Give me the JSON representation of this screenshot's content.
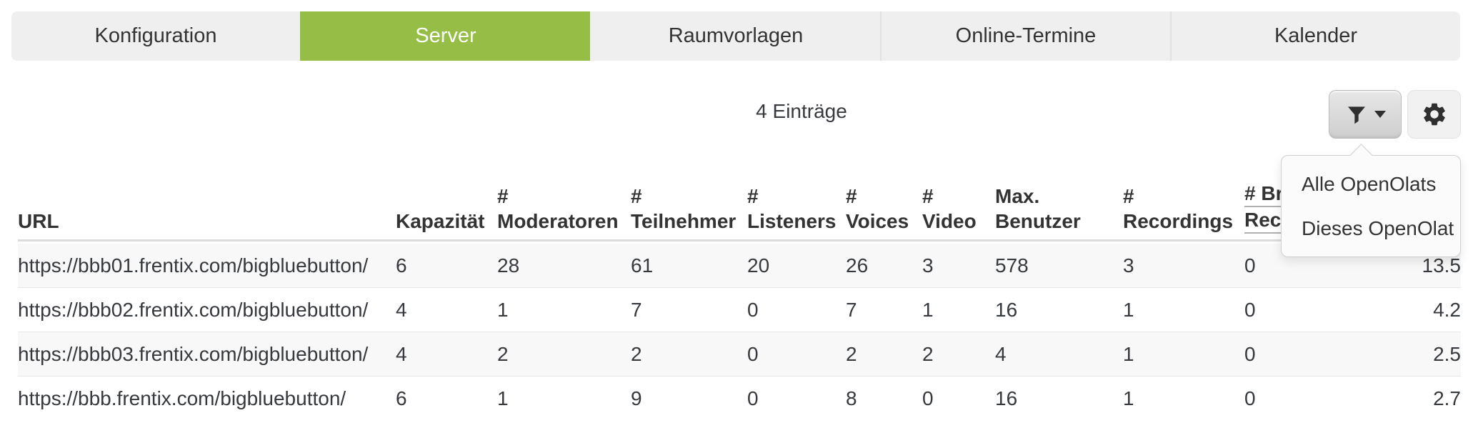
{
  "colors": {
    "active_tab_green": "#96be46",
    "active_tab_text": "#ffffff"
  },
  "tabs": [
    {
      "id": "konfiguration",
      "label": "Konfiguration",
      "active": false
    },
    {
      "id": "server",
      "label": "Server",
      "active": true
    },
    {
      "id": "raumvorlagen",
      "label": "Raumvorlagen",
      "active": false
    },
    {
      "id": "online-termine",
      "label": "Online-Termine",
      "active": false
    },
    {
      "id": "kalender",
      "label": "Kalender",
      "active": false
    }
  ],
  "toolbar": {
    "entries_label": "4 Einträge",
    "filter_button_icon": "funnel-icon",
    "settings_button_icon": "gear-icon",
    "filter_menu": {
      "items": [
        {
          "label": "Alle OpenOlats"
        },
        {
          "label": "Dieses OpenOlat"
        }
      ]
    }
  },
  "table": {
    "headers": [
      {
        "line1": "",
        "line2": "URL",
        "underlined": false
      },
      {
        "line1": "",
        "line2": "Kapazität",
        "underlined": false
      },
      {
        "line1": "#",
        "line2": "Moderatoren",
        "underlined": false
      },
      {
        "line1": "#",
        "line2": "Teilnehmer",
        "underlined": false
      },
      {
        "line1": "#",
        "line2": "Listeners",
        "underlined": false
      },
      {
        "line1": "#",
        "line2": "Voices",
        "underlined": false
      },
      {
        "line1": "#",
        "line2": "Video",
        "underlined": false
      },
      {
        "line1": "Max.",
        "line2": "Benutzer",
        "underlined": false
      },
      {
        "line1": "#",
        "line2": "Recordings",
        "underlined": false
      },
      {
        "line1": "# Br",
        "line2": "Rec",
        "underlined": true
      },
      {
        "line1": "",
        "line2": "",
        "underlined": false
      }
    ],
    "rows": [
      {
        "cells": [
          "https://bbb01.frentix.com/bigbluebutton/",
          "6",
          "28",
          "61",
          "20",
          "26",
          "3",
          "578",
          "3",
          "0",
          "13.5"
        ]
      },
      {
        "cells": [
          "https://bbb02.frentix.com/bigbluebutton/",
          "4",
          "1",
          "7",
          "0",
          "7",
          "1",
          "16",
          "1",
          "0",
          "4.2"
        ]
      },
      {
        "cells": [
          "https://bbb03.frentix.com/bigbluebutton/",
          "4",
          "2",
          "2",
          "0",
          "2",
          "2",
          "4",
          "1",
          "0",
          "2.5"
        ]
      },
      {
        "cells": [
          "https://bbb.frentix.com/bigbluebutton/",
          "6",
          "1",
          "9",
          "0",
          "8",
          "0",
          "16",
          "1",
          "0",
          "2.7"
        ]
      }
    ]
  }
}
